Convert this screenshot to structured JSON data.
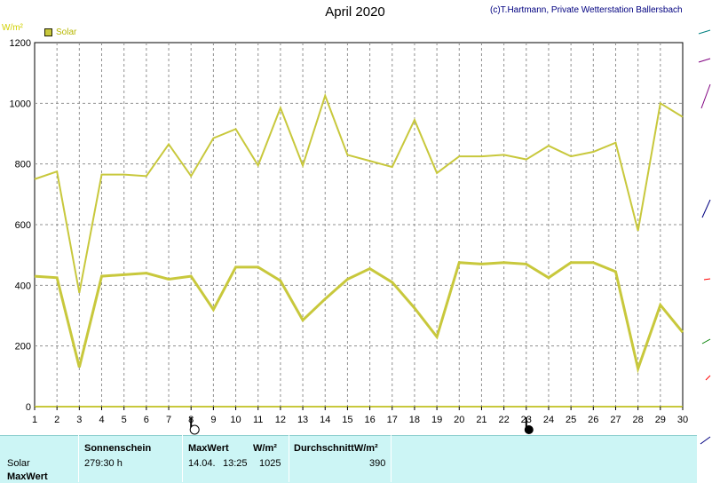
{
  "header": {
    "title": "April 2020",
    "credit": "(c)T.Hartmann, Private Wetterstation Ballersbach",
    "unit": "W/m²"
  },
  "chart_data": {
    "type": "line",
    "x": [
      1,
      2,
      3,
      4,
      5,
      6,
      7,
      8,
      9,
      10,
      11,
      12,
      13,
      14,
      15,
      16,
      17,
      18,
      19,
      20,
      21,
      22,
      23,
      24,
      25,
      26,
      27,
      28,
      29,
      30
    ],
    "ylim": [
      0,
      1200
    ],
    "yticks": [
      0,
      200,
      400,
      600,
      800,
      1000,
      1200
    ],
    "grid": true,
    "legend_position": "top-left",
    "series": [
      {
        "name": "Solar",
        "label": "max",
        "color": "#c8c83c",
        "values": [
          750,
          775,
          375,
          765,
          765,
          760,
          865,
          760,
          885,
          915,
          795,
          985,
          795,
          1025,
          830,
          810,
          790,
          945,
          770,
          825,
          825,
          830,
          815,
          860,
          825,
          840,
          870,
          580,
          1000,
          955
        ]
      },
      {
        "label": "avg",
        "color": "#c8c83c",
        "values": [
          430,
          425,
          130,
          430,
          435,
          440,
          420,
          430,
          320,
          460,
          460,
          415,
          285,
          355,
          420,
          455,
          410,
          325,
          230,
          475,
          470,
          475,
          470,
          425,
          475,
          475,
          445,
          125,
          335,
          245
        ]
      }
    ]
  },
  "legend": {
    "label": "Solar"
  },
  "moon_markers": {
    "full_moon_day": 8,
    "new_moon_day": 23
  },
  "summary": {
    "headers": {
      "sonnenschein": "Sonnenschein",
      "maxwert": "MaxWert",
      "wm2": "W/m²",
      "durchschnitt": "DurchschnittW/m²"
    },
    "row_labels": {
      "solar": "Solar",
      "maxwert": "MaxWert"
    },
    "values": {
      "sonnenschein": "279:30 h",
      "max_date": "14.04.",
      "max_time": "13:25",
      "max_value": "1025",
      "average": "390"
    }
  }
}
